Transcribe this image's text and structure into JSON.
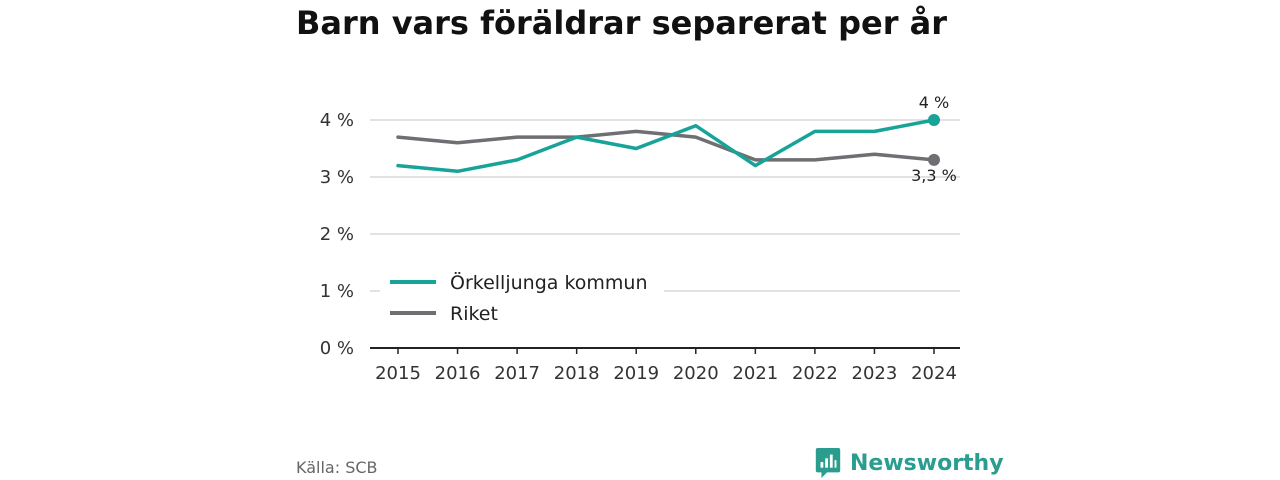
{
  "title": "Barn vars föräldrar separerat per år",
  "source": "Källa: SCB",
  "brand": {
    "name": "Newsworthy",
    "icon": "newsworthy-logo-icon",
    "color": "#2a9d8f"
  },
  "colors": {
    "orkelljunga": "#17a398",
    "riket": "#6e6e73",
    "grid": "#d9d9d9",
    "axis": "#222222"
  },
  "chart_data": {
    "type": "line",
    "title": "Barn vars föräldrar separerat per år",
    "x": [
      2015,
      2016,
      2017,
      2018,
      2019,
      2020,
      2021,
      2022,
      2023,
      2024
    ],
    "x_tick_labels": [
      "2015",
      "2016",
      "2017",
      "2018",
      "2019",
      "2020",
      "2021",
      "2022",
      "2023",
      "2024"
    ],
    "y_ticks": [
      0,
      1,
      2,
      3,
      4
    ],
    "y_tick_labels": [
      "0 %",
      "1 %",
      "2 %",
      "3 %",
      "4 %"
    ],
    "ylim": [
      0,
      4.2
    ],
    "grid": true,
    "legend_position": "lower-left",
    "series": [
      {
        "name": "Örkelljunga kommun",
        "color": "#17a398",
        "values": [
          3.2,
          3.1,
          3.3,
          3.7,
          3.5,
          3.9,
          3.2,
          3.8,
          3.8,
          4.0
        ],
        "end_label": "4 %"
      },
      {
        "name": "Riket",
        "color": "#6e6e73",
        "values": [
          3.7,
          3.6,
          3.7,
          3.7,
          3.8,
          3.7,
          3.3,
          3.3,
          3.4,
          3.3
        ],
        "end_label": "3,3 %"
      }
    ]
  }
}
